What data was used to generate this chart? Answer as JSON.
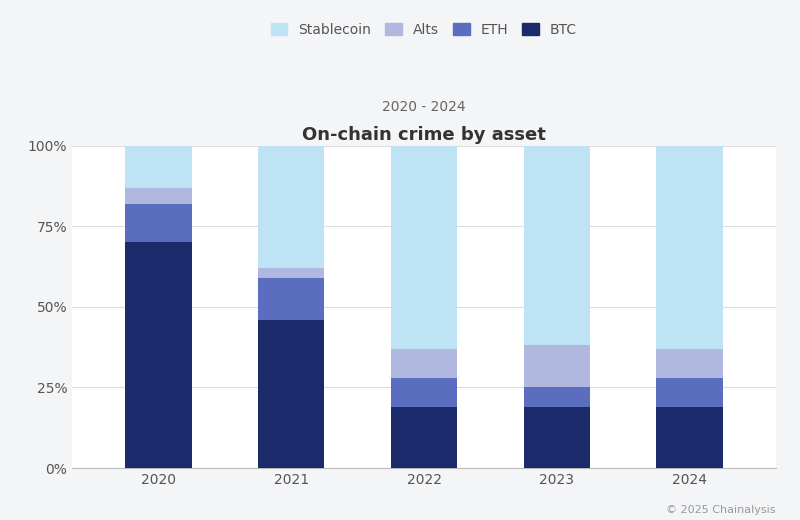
{
  "years": [
    "2020",
    "2021",
    "2022",
    "2023",
    "2024"
  ],
  "btc": [
    0.7,
    0.46,
    0.19,
    0.19,
    0.19
  ],
  "eth": [
    0.12,
    0.13,
    0.09,
    0.06,
    0.09
  ],
  "alts": [
    0.05,
    0.03,
    0.09,
    0.13,
    0.09
  ],
  "stablecoin": [
    0.13,
    0.38,
    0.63,
    0.62,
    0.63
  ],
  "colors": {
    "btc": "#1b2a6b",
    "eth": "#5b6dbf",
    "alts": "#b0b8e0",
    "stablecoin": "#bde3f5"
  },
  "title": "On-chain crime by asset",
  "subtitle": "2020 - 2024",
  "background_color": "#f4f5f7",
  "plot_area_color": "#ffffff",
  "bar_width": 0.5,
  "ylim": [
    0,
    1.0
  ],
  "yticks": [
    0.0,
    0.25,
    0.5,
    0.75,
    1.0
  ],
  "ytick_labels": [
    "0%",
    "25%",
    "50%",
    "75%",
    "100%"
  ],
  "source_text": "© 2025 Chainalysis",
  "title_fontsize": 13,
  "subtitle_fontsize": 10,
  "tick_fontsize": 10
}
